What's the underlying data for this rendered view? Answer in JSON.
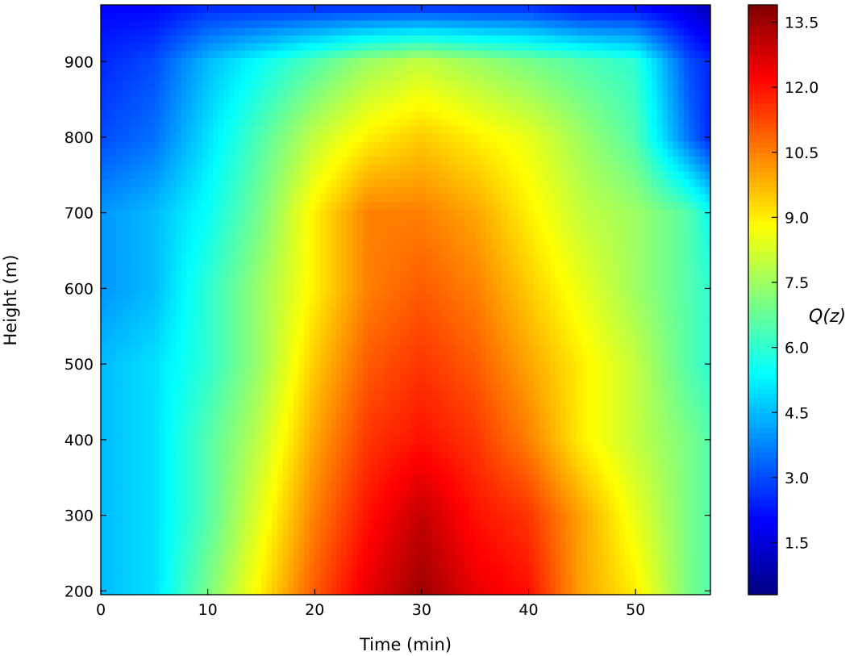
{
  "chart_data": {
    "type": "heatmap",
    "title": "",
    "xlabel": "Time (min)",
    "ylabel": "Height (m)",
    "xlim": [
      0,
      57
    ],
    "ylim": [
      195,
      975
    ],
    "x_ticks": [
      0,
      10,
      20,
      30,
      40,
      50
    ],
    "y_ticks": [
      200,
      300,
      400,
      500,
      600,
      700,
      800,
      900
    ],
    "colormap": "jet",
    "colorbar": {
      "label": "Q(z)",
      "range": [
        0.3,
        13.9
      ],
      "ticks": [
        1.5,
        3.0,
        4.5,
        6.0,
        7.5,
        9.0,
        10.5,
        12.0,
        13.5
      ]
    },
    "x": [
      0,
      5,
      10,
      15,
      20,
      25,
      30,
      35,
      40,
      45,
      50,
      55,
      57
    ],
    "y": [
      200,
      300,
      400,
      500,
      600,
      700,
      800,
      900,
      975
    ],
    "z": [
      [
        4.5,
        5.0,
        7.0,
        9.0,
        11.0,
        12.5,
        13.5,
        12.5,
        12.0,
        10.0,
        9.0,
        7.0,
        6.5
      ],
      [
        4.5,
        5.0,
        6.5,
        8.5,
        10.5,
        12.0,
        13.0,
        12.0,
        11.5,
        10.0,
        8.5,
        7.0,
        6.5
      ],
      [
        4.5,
        5.0,
        6.5,
        8.0,
        10.0,
        11.5,
        12.0,
        11.5,
        10.5,
        9.0,
        8.0,
        7.0,
        6.5
      ],
      [
        4.5,
        5.0,
        6.0,
        7.5,
        9.5,
        11.0,
        11.5,
        11.0,
        10.0,
        9.0,
        8.0,
        6.5,
        6.0
      ],
      [
        4.0,
        4.5,
        6.0,
        7.5,
        9.0,
        10.5,
        11.0,
        10.5,
        9.5,
        8.5,
        7.5,
        6.5,
        6.0
      ],
      [
        4.0,
        4.5,
        5.5,
        7.0,
        9.0,
        10.5,
        10.5,
        10.0,
        9.0,
        8.0,
        7.5,
        6.5,
        5.5
      ],
      [
        3.0,
        3.5,
        5.0,
        6.5,
        8.0,
        9.0,
        9.5,
        9.0,
        8.5,
        7.5,
        6.5,
        3.5,
        2.5
      ],
      [
        2.5,
        3.0,
        4.5,
        5.5,
        6.5,
        7.5,
        8.0,
        7.5,
        7.0,
        6.5,
        6.0,
        3.0,
        2.5
      ],
      [
        2.0,
        2.0,
        2.5,
        2.5,
        2.5,
        2.5,
        2.5,
        2.5,
        2.5,
        2.0,
        2.0,
        1.5,
        1.0
      ]
    ]
  }
}
